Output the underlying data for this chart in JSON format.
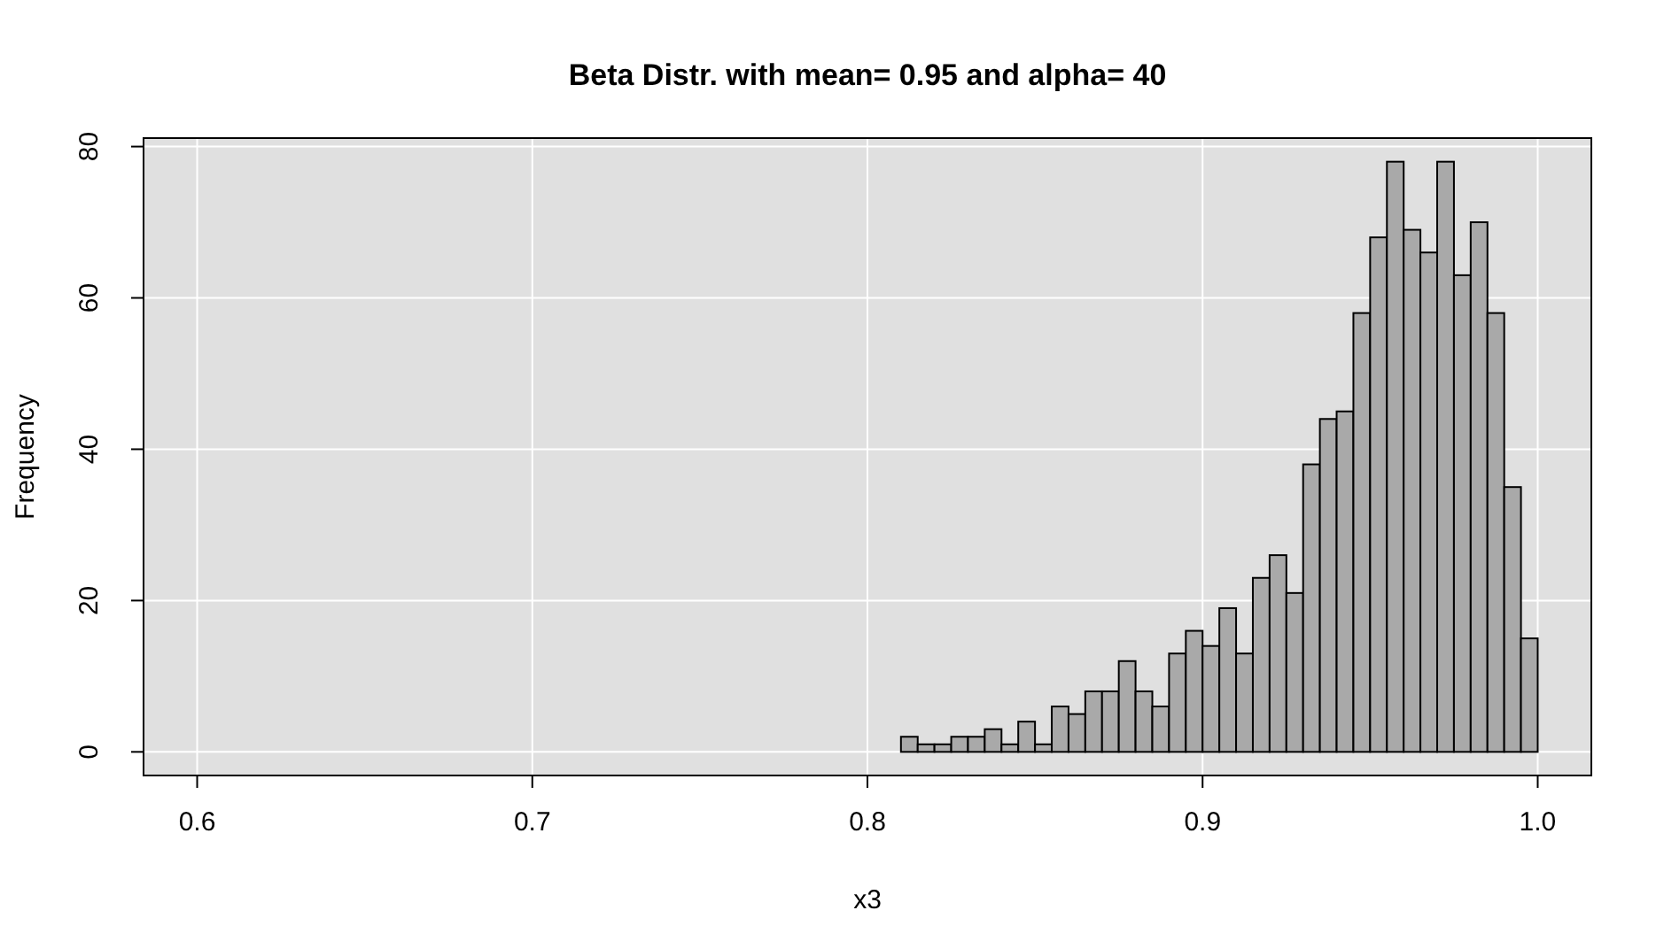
{
  "chart_data": {
    "type": "histogram",
    "title": "Beta Distr. with mean= 0.95 and alpha= 40",
    "xlabel": "x3",
    "ylabel": "Frequency",
    "bins": [
      0.81,
      0.815,
      0.82,
      0.825,
      0.83,
      0.835,
      0.84,
      0.845,
      0.85,
      0.855,
      0.86,
      0.865,
      0.87,
      0.875,
      0.88,
      0.885,
      0.89,
      0.895,
      0.9,
      0.905,
      0.91,
      0.915,
      0.92,
      0.925,
      0.93,
      0.935,
      0.94,
      0.945,
      0.95,
      0.955,
      0.96,
      0.965,
      0.97,
      0.975,
      0.98,
      0.985,
      0.99,
      0.995,
      1.0
    ],
    "values": [
      2,
      1,
      1,
      2,
      2,
      3,
      1,
      4,
      1,
      6,
      5,
      8,
      8,
      12,
      8,
      6,
      13,
      16,
      14,
      19,
      13,
      23,
      26,
      21,
      38,
      44,
      45,
      58,
      68,
      78,
      69,
      66,
      78,
      63,
      70,
      58,
      35,
      15
    ],
    "color": "#a9a9a9",
    "xlim": [
      0.584,
      1.016
    ],
    "xticks": [
      {
        "value": 0.6,
        "label": "0.6"
      },
      {
        "value": 0.7,
        "label": "0.7"
      },
      {
        "value": 0.8,
        "label": "0.8"
      },
      {
        "value": 0.9,
        "label": "0.9"
      },
      {
        "value": 1.0,
        "label": "1.0"
      }
    ],
    "ylim": [
      -3.12,
      81.12
    ],
    "yticks": [
      0,
      20,
      40,
      60,
      80
    ],
    "grid": true
  }
}
